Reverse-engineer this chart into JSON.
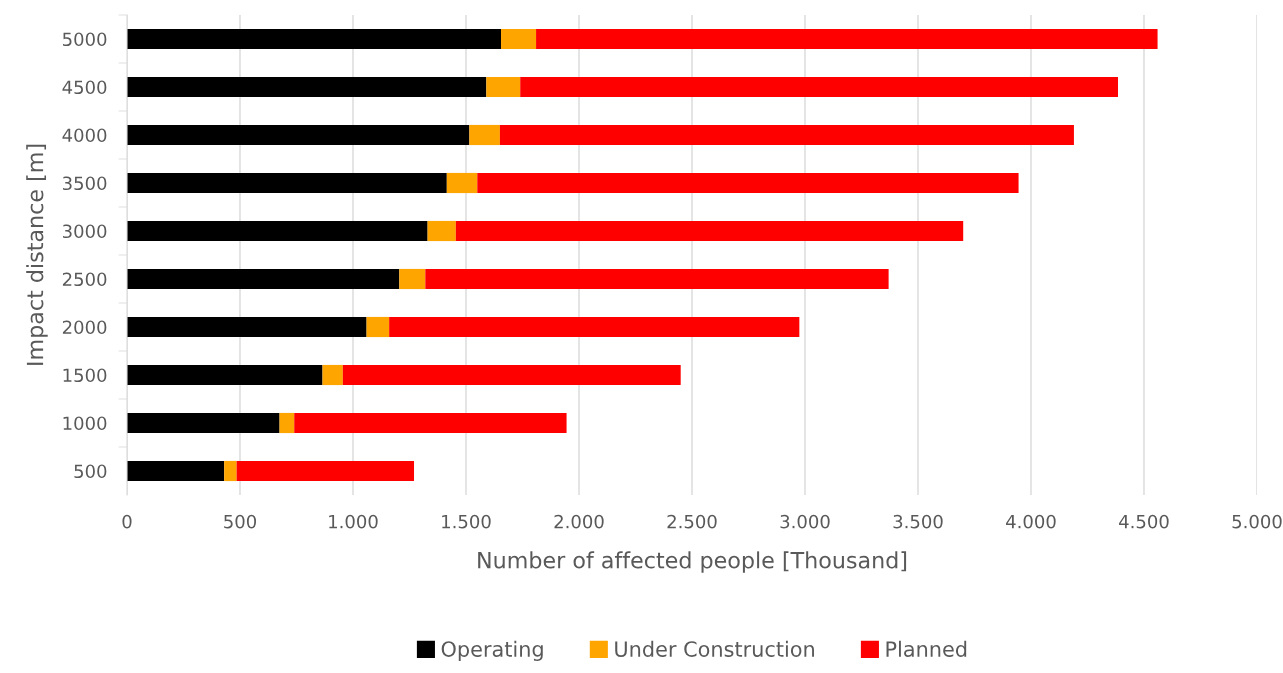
{
  "chart_data": {
    "type": "bar",
    "orientation": "horizontal",
    "stacked": true,
    "xlabel": "Number of affected people [Thousand]",
    "ylabel": "Impact distance [m]",
    "categories": [
      "5000",
      "4500",
      "4000",
      "3500",
      "3000",
      "2500",
      "2000",
      "1500",
      "1000",
      "500"
    ],
    "series": [
      {
        "name": "Operating",
        "color": "#000000",
        "values": [
          1655,
          1590,
          1515,
          1415,
          1330,
          1205,
          1060,
          865,
          675,
          430
        ]
      },
      {
        "name": "Under Construction",
        "color": "#ffa500",
        "values": [
          155,
          150,
          135,
          135,
          125,
          115,
          100,
          90,
          65,
          55
        ]
      },
      {
        "name": "Planned",
        "color": "#ff0000",
        "values": [
          2750,
          2645,
          2540,
          2395,
          2245,
          2050,
          1815,
          1495,
          1205,
          785
        ]
      }
    ],
    "xlim": [
      0,
      5000
    ],
    "xticks": [
      0,
      500,
      {
        "value": 1000,
        "label": "1.000"
      },
      {
        "value": 1500,
        "label": "1.500"
      },
      {
        "value": 2000,
        "label": "2.000"
      },
      {
        "value": 2500,
        "label": "2.500"
      },
      {
        "value": 3000,
        "label": "3.000"
      },
      {
        "value": 3500,
        "label": "3.500"
      },
      {
        "value": 4000,
        "label": "4.000"
      },
      {
        "value": 4500,
        "label": "4.500"
      },
      {
        "value": 5000,
        "label": "5.000"
      }
    ],
    "grid": "x",
    "legend": "bottom"
  }
}
